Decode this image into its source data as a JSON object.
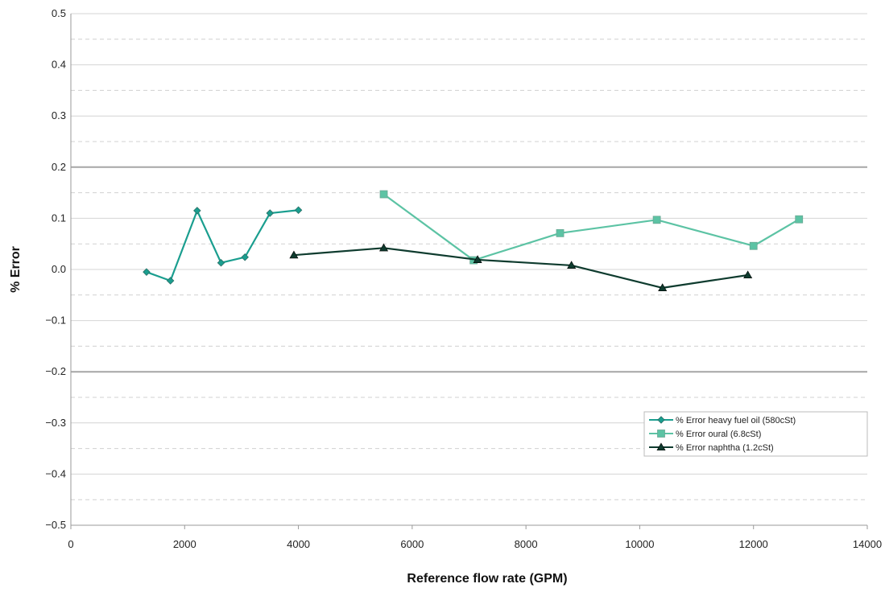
{
  "chart_data": {
    "type": "line",
    "title": "",
    "xlabel": "Reference flow rate (GPM)",
    "ylabel": "% Error",
    "xlim": [
      0,
      14000
    ],
    "ylim": [
      -0.5,
      0.5
    ],
    "x_ticks": [
      0,
      2000,
      4000,
      6000,
      8000,
      10000,
      12000,
      14000
    ],
    "y_ticks": [
      -0.5,
      -0.4,
      -0.3,
      -0.2,
      -0.1,
      0.0,
      0.1,
      0.2,
      0.3,
      0.4,
      0.5
    ],
    "x_tick_labels": [
      "0",
      "2000",
      "4000",
      "6000",
      "8000",
      "10000",
      "12000",
      "14000"
    ],
    "y_tick_labels": [
      "−0.5",
      "−0.4",
      "−0.3",
      "−0.2",
      "−0.1",
      "0.0",
      "0.1",
      "0.2",
      "0.3",
      "0.4",
      "0.5"
    ],
    "grid": true,
    "minor_grid": "dashed",
    "emphasized_gridlines": [
      0.2,
      -0.2
    ],
    "legend_position": "lower-right",
    "series": [
      {
        "name": "% Error heavy fuel oil (580cSt)",
        "color": "#1a9e8f",
        "marker": "diamond",
        "x": [
          1330,
          1750,
          2220,
          2640,
          3060,
          3500,
          4000
        ],
        "y": [
          -0.005,
          -0.022,
          0.115,
          0.013,
          0.024,
          0.11,
          0.116
        ]
      },
      {
        "name": "% Error oural (6.8cSt)",
        "color": "#5cc3a4",
        "marker": "square",
        "x": [
          5500,
          7080,
          8600,
          10300,
          12000,
          12800
        ],
        "y": [
          0.147,
          0.018,
          0.071,
          0.097,
          0.046,
          0.098
        ]
      },
      {
        "name": "% Error naphtha (1.2cSt)",
        "color": "#0e3b2e",
        "marker": "triangle",
        "x": [
          3920,
          5500,
          7150,
          8800,
          10400,
          11900
        ],
        "y": [
          0.028,
          0.042,
          0.019,
          0.008,
          -0.036,
          -0.011
        ]
      }
    ]
  }
}
